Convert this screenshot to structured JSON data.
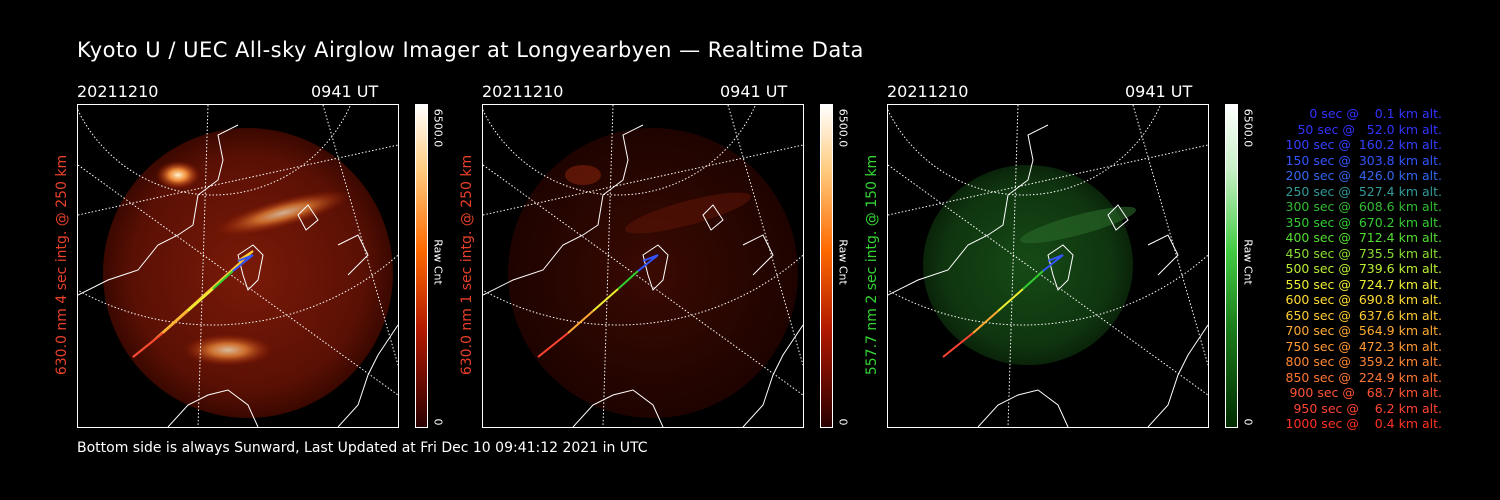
{
  "title": "Kyoto U / UEC All-sky Airglow Imager at Longyearbyen — Realtime Data",
  "footer": "Bottom side is always Sunward, Last Updated at Fri Dec 10 09:41:12 2021 in UTC",
  "panels": [
    {
      "date": "20211210",
      "time": "0941 UT",
      "label": "630.0 nm  4 sec intg. @ 250 km",
      "label_color": "#e8402a",
      "cbar_max": "6500.0",
      "cbar_min": "0",
      "cbar_unit": "Raw Cnt",
      "cbar_color": "#d21e00"
    },
    {
      "date": "20211210",
      "time": "0941 UT",
      "label": "630.0 nm  1 sec intg. @ 250 km",
      "label_color": "#e8402a",
      "cbar_max": "6500.0",
      "cbar_min": "0",
      "cbar_unit": "Raw Cnt",
      "cbar_color": "#d21e00"
    },
    {
      "date": "20211210",
      "time": "0941 UT",
      "label": "557.7 nm  2 sec intg. @ 150 km",
      "label_color": "#33d633",
      "cbar_max": "6500.0",
      "cbar_min": "0",
      "cbar_unit": "Raw Cnt",
      "cbar_color": "#2fbf2f"
    }
  ],
  "legend": [
    {
      "text": "0 sec @    0.1 km alt.",
      "color": "#3333ff"
    },
    {
      "text": "50 sec @   52.0 km alt.",
      "color": "#3333ff"
    },
    {
      "text": "100 sec @  160.2 km alt.",
      "color": "#3340ff"
    },
    {
      "text": "150 sec @  303.8 km alt.",
      "color": "#3355ff"
    },
    {
      "text": "200 sec @  426.0 km alt.",
      "color": "#3366ee"
    },
    {
      "text": "250 sec @  527.4 km alt.",
      "color": "#339999"
    },
    {
      "text": "300 sec @  608.6 km alt.",
      "color": "#33bb33"
    },
    {
      "text": "350 sec @  670.2 km alt.",
      "color": "#33cc33"
    },
    {
      "text": "400 sec @  712.4 km alt.",
      "color": "#55dd33"
    },
    {
      "text": "450 sec @  735.5 km alt.",
      "color": "#88dd33"
    },
    {
      "text": "500 sec @  739.6 km alt.",
      "color": "#bbee33"
    },
    {
      "text": "550 sec @  724.7 km alt.",
      "color": "#eeee33"
    },
    {
      "text": "600 sec @  690.8 km alt.",
      "color": "#ffdd33"
    },
    {
      "text": "650 sec @  637.6 km alt.",
      "color": "#ffcc33"
    },
    {
      "text": "700 sec @  564.9 km alt.",
      "color": "#ffaa33"
    },
    {
      "text": "750 sec @  472.3 km alt.",
      "color": "#ff9933"
    },
    {
      "text": "800 sec @  359.2 km alt.",
      "color": "#ff8833"
    },
    {
      "text": "850 sec @  224.9 km alt.",
      "color": "#ff7733"
    },
    {
      "text": "900 sec @   68.7 km alt.",
      "color": "#ff5533"
    },
    {
      "text": "950 sec @    6.2 km alt.",
      "color": "#ff4433"
    },
    {
      "text": "1000 sec @    0.4 km alt.",
      "color": "#ff3322"
    }
  ]
}
